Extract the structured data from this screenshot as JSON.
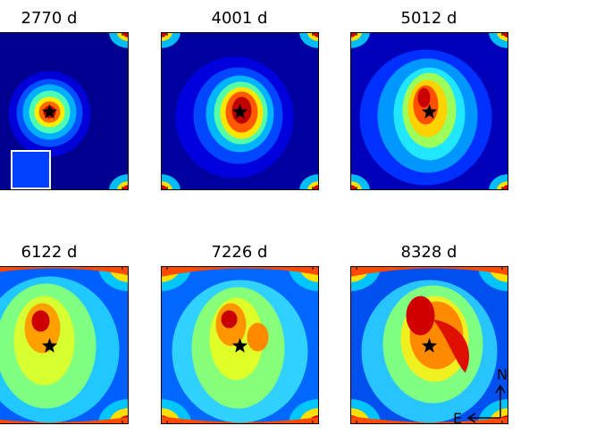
{
  "chart_data": {
    "type": "heatmap",
    "colormap": "jet",
    "panels": [
      {
        "title": "2770 d",
        "row": 0,
        "col": 0,
        "clipped_left": true
      },
      {
        "title": "4001 d",
        "row": 0,
        "col": 1
      },
      {
        "title": "5012 d",
        "row": 0,
        "col": 2
      },
      {
        "title": "6122 d",
        "row": 1,
        "col": 0,
        "clipped_left": true
      },
      {
        "title": "7226 d",
        "row": 1,
        "col": 1
      },
      {
        "title": "8328 d",
        "row": 1,
        "col": 2
      }
    ],
    "center_marker": "star",
    "compass": {
      "north": "N",
      "east": "E"
    },
    "colors": {
      "marker": "#000000",
      "frame": "#000000",
      "inset_box": "#ffffff"
    }
  }
}
